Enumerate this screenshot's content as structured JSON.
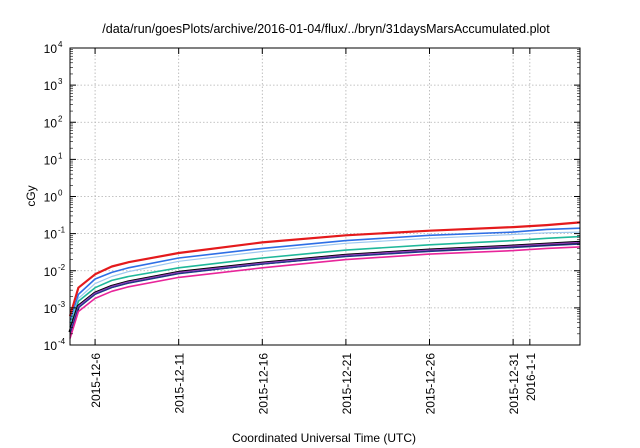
{
  "chart_data": {
    "type": "line",
    "title": "/data/run/goesPlots/archive/2016-01-04/flux/../bryn/31daysMarsAccumulated.plot",
    "xlabel": "Coordinated Universal Time (UTC)",
    "ylabel": "cGy",
    "yscale": "log",
    "ylim": [
      0.0001,
      10000
    ],
    "xlim": [
      "2015-12-04 12:00",
      "2016-01-04 00:00"
    ],
    "grid": true,
    "y_ticks": [
      {
        "base": "10",
        "exp": "4"
      },
      {
        "base": "10",
        "exp": "3"
      },
      {
        "base": "10",
        "exp": "2"
      },
      {
        "base": "10",
        "exp": "1"
      },
      {
        "base": "10",
        "exp": "0"
      },
      {
        "base": "10",
        "exp": "-1"
      },
      {
        "base": "10",
        "exp": "-2"
      },
      {
        "base": "10",
        "exp": "-3"
      },
      {
        "base": "10",
        "exp": "-4"
      }
    ],
    "x_ticks": [
      "2015-12-6",
      "2015-12-11",
      "2015-12-16",
      "2015-12-21",
      "2015-12-26",
      "2015-12-31",
      "2016-1-1"
    ],
    "x": [
      "2015-12-04 12:00",
      "2015-12-05",
      "2015-12-06",
      "2015-12-07",
      "2015-12-08",
      "2015-12-11",
      "2015-12-16",
      "2015-12-21",
      "2015-12-26",
      "2015-12-31",
      "2016-01-02",
      "2016-01-04"
    ],
    "series": [
      {
        "color": "#e41a1c",
        "width": 2.2,
        "values": [
          0.0006,
          0.0035,
          0.008,
          0.013,
          0.017,
          0.03,
          0.058,
          0.09,
          0.12,
          0.15,
          0.17,
          0.2
        ]
      },
      {
        "color": "#2e6fe6",
        "width": 1.6,
        "values": [
          0.0004,
          0.0023,
          0.006,
          0.009,
          0.012,
          0.022,
          0.04,
          0.065,
          0.09,
          0.11,
          0.13,
          0.14
        ]
      },
      {
        "color": "#9ec8f0",
        "width": 1.2,
        "values": [
          0.00035,
          0.0018,
          0.0045,
          0.007,
          0.0095,
          0.018,
          0.033,
          0.055,
          0.075,
          0.095,
          0.105,
          0.11
        ]
      },
      {
        "color": "#1fb89a",
        "width": 1.6,
        "values": [
          0.0003,
          0.0015,
          0.0035,
          0.0055,
          0.007,
          0.012,
          0.022,
          0.036,
          0.05,
          0.065,
          0.075,
          0.083
        ]
      },
      {
        "color": "#000000",
        "width": 3.2,
        "values": [
          0.00022,
          0.0011,
          0.0025,
          0.0038,
          0.005,
          0.009,
          0.016,
          0.026,
          0.036,
          0.046,
          0.052,
          0.058
        ]
      },
      {
        "color": "#8b3db8",
        "width": 1.4,
        "values": [
          0.00022,
          0.0011,
          0.0025,
          0.0038,
          0.005,
          0.009,
          0.016,
          0.026,
          0.036,
          0.046,
          0.052,
          0.058
        ]
      },
      {
        "color": "#1b3b8a",
        "width": 1.2,
        "values": [
          0.0002,
          0.001,
          0.0023,
          0.0035,
          0.0046,
          0.0083,
          0.015,
          0.024,
          0.033,
          0.042,
          0.047,
          0.052
        ]
      },
      {
        "color": "#e8259a",
        "width": 1.6,
        "values": [
          0.00015,
          0.0008,
          0.0018,
          0.0028,
          0.0037,
          0.0066,
          0.012,
          0.02,
          0.028,
          0.035,
          0.04,
          0.044
        ]
      }
    ]
  }
}
